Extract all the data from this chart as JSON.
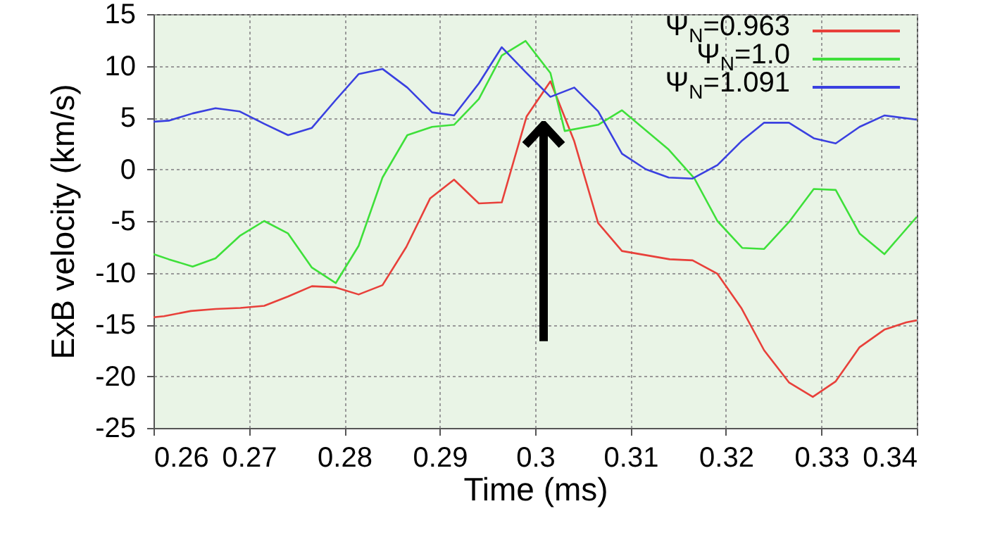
{
  "chart_data": {
    "type": "line",
    "xlabel": "Time (ms)",
    "ylabel": "ExB velocity (km/s)",
    "xlim": [
      0.26,
      0.34
    ],
    "xticks": [
      0.26,
      0.27,
      0.28,
      0.29,
      0.3,
      0.31,
      0.32,
      0.33,
      0.34
    ],
    "ylim": [
      -25,
      15
    ],
    "yticks": [
      -25,
      -20,
      -15,
      -10,
      -5,
      0,
      5,
      10,
      15
    ],
    "grid": true,
    "legend": "top right",
    "series": [
      {
        "name": "Ψ$_{N}$=0.963",
        "color": "#e8403a",
        "x": [
          0.26,
          0.2611,
          0.2639,
          0.2665,
          0.2691,
          0.2716,
          0.2741,
          0.2766,
          0.279,
          0.2815,
          0.284,
          0.2865,
          0.289,
          0.2915,
          0.2941,
          0.2965,
          0.2991,
          0.3016,
          0.3041,
          0.3066,
          0.3091,
          0.3141,
          0.3165,
          0.3191,
          0.3216,
          0.324,
          0.3266,
          0.3291,
          0.3315,
          0.334,
          0.3366,
          0.3389,
          0.34
        ],
        "values": [
          -14.3,
          -14.2,
          -13.7,
          -13.5,
          -13.4,
          -13.2,
          -12.3,
          -11.3,
          -11.4,
          -12.1,
          -11.2,
          -7.5,
          -2.8,
          -1.0,
          -3.3,
          -3.2,
          5.1,
          8.5,
          2.7,
          -5.2,
          -7.9,
          -8.7,
          -8.8,
          -10.1,
          -13.4,
          -17.5,
          -20.6,
          -22.0,
          -20.5,
          -17.2,
          -15.5,
          -14.8,
          -14.6
        ]
      },
      {
        "name": "Ψ$_{N}$=1.0",
        "color": "#3ee03a",
        "x": [
          0.26,
          0.2616,
          0.2641,
          0.2665,
          0.2691,
          0.2716,
          0.2741,
          0.2766,
          0.2791,
          0.2815,
          0.284,
          0.2866,
          0.2892,
          0.2915,
          0.2941,
          0.2965,
          0.299,
          0.3016,
          0.3031,
          0.3066,
          0.3091,
          0.314,
          0.3167,
          0.3191,
          0.3217,
          0.324,
          0.3266,
          0.3292,
          0.3315,
          0.334,
          0.3366,
          0.34
        ],
        "values": [
          -8.2,
          -8.7,
          -9.4,
          -8.6,
          -6.4,
          -5.0,
          -6.2,
          -9.5,
          -11.0,
          -7.4,
          -0.8,
          3.3,
          4.1,
          4.3,
          6.8,
          11.0,
          12.4,
          9.3,
          3.7,
          4.3,
          5.7,
          1.9,
          -0.9,
          -5.0,
          -7.6,
          -7.7,
          -5.1,
          -1.9,
          -2.0,
          -6.2,
          -8.2,
          -4.6
        ]
      },
      {
        "name": "Ψ$_{N}$=1.091",
        "color": "#3a40e0",
        "x": [
          0.26,
          0.2616,
          0.2641,
          0.2665,
          0.269,
          0.2716,
          0.2741,
          0.2766,
          0.2791,
          0.2815,
          0.284,
          0.2866,
          0.2892,
          0.2915,
          0.2941,
          0.2965,
          0.299,
          0.3016,
          0.3041,
          0.3066,
          0.3091,
          0.3116,
          0.314,
          0.3165,
          0.3191,
          0.3216,
          0.324,
          0.3266,
          0.3292,
          0.3315,
          0.334,
          0.3366,
          0.34
        ],
        "values": [
          4.6,
          4.7,
          5.4,
          5.9,
          5.6,
          4.4,
          3.3,
          4.0,
          6.7,
          9.2,
          9.7,
          7.9,
          5.5,
          5.2,
          8.3,
          11.8,
          9.4,
          7.0,
          7.9,
          5.6,
          1.5,
          0.0,
          -0.8,
          -0.9,
          0.4,
          2.7,
          4.5,
          4.5,
          3.0,
          2.5,
          4.1,
          5.2,
          4.8
        ]
      }
    ]
  }
}
